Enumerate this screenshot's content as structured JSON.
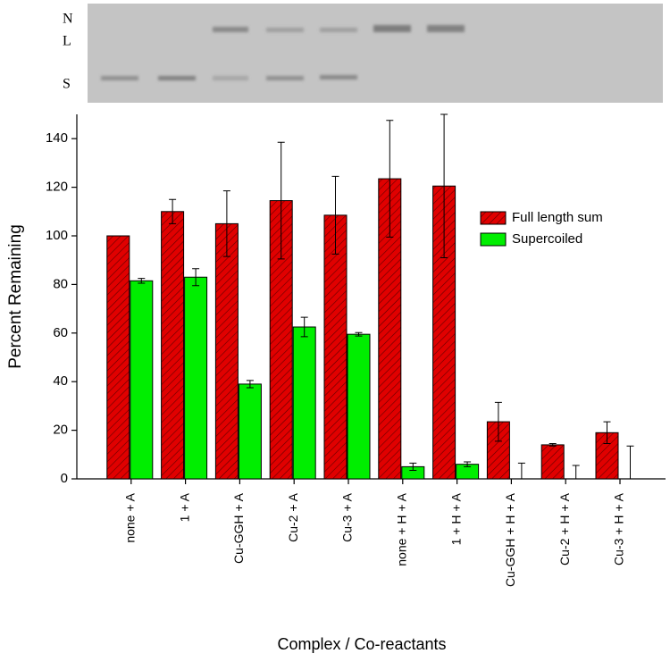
{
  "gel": {
    "lane_labels": [
      "N",
      "L",
      "S"
    ]
  },
  "chart_data": {
    "type": "bar",
    "y_label": "Percent Remaining",
    "x_label": "Complex / Co-reactants",
    "categories": [
      "none + A",
      "1 + A",
      "Cu-GGH + A",
      "Cu-2 + A",
      "Cu-3 + A",
      "none + H + A",
      "1 + H + A",
      "Cu-GGH + H + A",
      "Cu-2 + H + A",
      "Cu-3 + H + A"
    ],
    "series": [
      {
        "name": "Full length sum",
        "color": "#e00000",
        "values": [
          100,
          110,
          105,
          114.5,
          108.5,
          123.5,
          120.5,
          23.5,
          14,
          19
        ],
        "errors": [
          0,
          5,
          13.5,
          24,
          16,
          24,
          29.5,
          8,
          0.5,
          4.5
        ]
      },
      {
        "name": "Supercoiled",
        "color": "#00ee00",
        "values": [
          81.5,
          83,
          39,
          62.5,
          59.5,
          5,
          6,
          0,
          0,
          0
        ],
        "errors": [
          1,
          3.5,
          1.5,
          4,
          0.7,
          1.5,
          1,
          6.5,
          5.5,
          13.5
        ]
      }
    ],
    "ylim": [
      0,
      150
    ],
    "yticks": [
      0,
      20,
      40,
      60,
      80,
      100,
      120,
      140
    ],
    "legend": "upper right",
    "grid": false
  }
}
